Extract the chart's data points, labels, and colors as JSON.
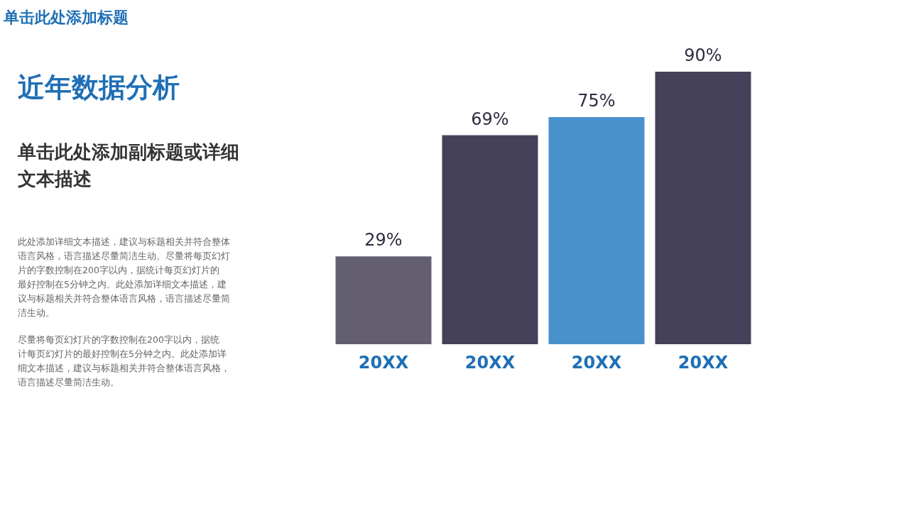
{
  "chart_data": {
    "type": "bar",
    "title": "近年数据分析",
    "subtitle": "单击此处添加副标题或详细文本描述",
    "annotations": [
      "单击此处添加标题",
      "此处添加详细文本描述，建议与标题相关并符合整体语言风格，语言描述尽量简洁生动。尽量将每页幻灯片的字数控制在200字以内，据统计每页幻灯片的最好控制在5分钟之内。此处添加详细文本描述，建议与标题相关并符合整体语言风格，语言描述尽量简洁生动。",
      "尽量将每页幻灯片的字数控制在200字以内，据统计每页幻灯片的最好控制在5分钟之内。此处添加详细文本描述，建议与标题相关并符合整体语言风格，语言描述尽量简洁生动。"
    ],
    "categories": [
      "20XX",
      "20XX",
      "20XX",
      "20XX"
    ],
    "values": [
      29,
      69,
      75,
      90
    ],
    "colors": [
      "#5b5669",
      "#3b3751",
      "#3f8bc9",
      "#3b3751"
    ],
    "value_labels": [
      "29%",
      "69%",
      "75%",
      "90%"
    ]
  }
}
